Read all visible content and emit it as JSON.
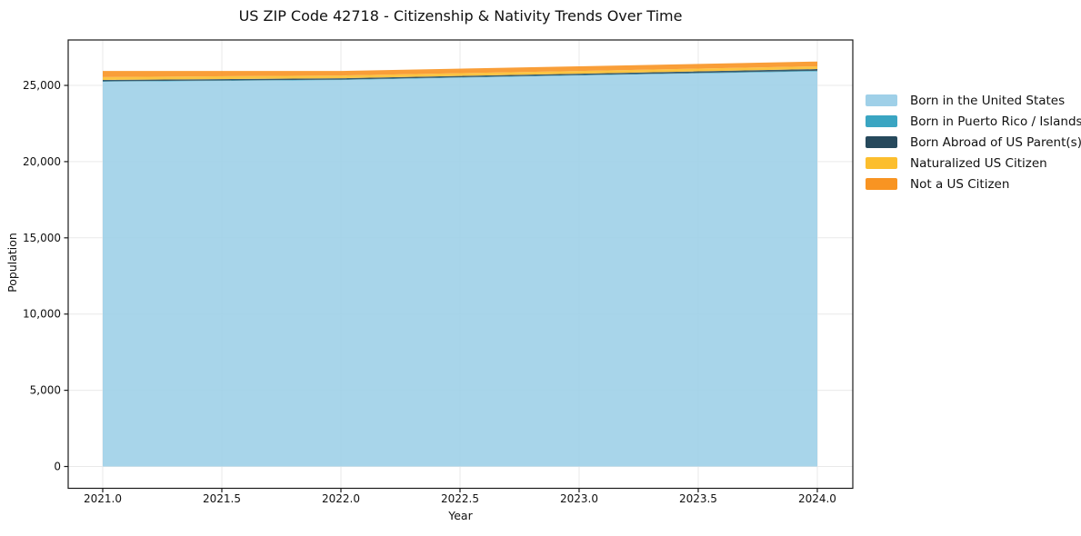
{
  "figure": {
    "title": "US ZIP Code 42718 - Citizenship & Nativity Trends Over Time",
    "background_color": "#ffffff",
    "spine_color": "#1a1a1a",
    "grid_color": "#e9e9e9",
    "text_color": "#111111"
  },
  "chart_data": {
    "type": "area",
    "stacked": true,
    "title": "US ZIP Code 42718 - Citizenship & Nativity Trends Over Time",
    "xlabel": "Year",
    "ylabel": "Population",
    "x": [
      2021,
      2022,
      2023,
      2024
    ],
    "series": [
      {
        "name": "Born in the United States",
        "color": "#9fd0e8",
        "values": [
          25240,
          25350,
          25650,
          25920
        ]
      },
      {
        "name": "Born in Puerto Rico / Islands",
        "color": "#3aa5c2",
        "values": [
          30,
          30,
          30,
          40
        ]
      },
      {
        "name": "Born Abroad of US Parent(s)",
        "color": "#26495c",
        "values": [
          90,
          90,
          90,
          110
        ]
      },
      {
        "name": "Naturalized US Citizen",
        "color": "#fcbe2d",
        "values": [
          180,
          180,
          180,
          180
        ]
      },
      {
        "name": "Not a US Citizen",
        "color": "#f89422",
        "values": [
          410,
          300,
          300,
          320
        ]
      }
    ],
    "totals": [
      25950,
      25950,
      26250,
      26570
    ],
    "xlim": [
      2020.855,
      2024.149
    ],
    "ylim": [
      -1430,
      27980
    ],
    "x_ticks": {
      "values": [
        2021,
        2021.5,
        2022,
        2022.5,
        2023,
        2023.5,
        2024
      ],
      "labels": [
        "2021.0",
        "2021.5",
        "2022.0",
        "2022.5",
        "2023.0",
        "2023.5",
        "2024.0"
      ]
    },
    "y_ticks": {
      "values": [
        0,
        5000,
        10000,
        15000,
        20000,
        25000
      ],
      "labels": [
        "0",
        "5,000",
        "10,000",
        "15,000",
        "20,000",
        "25,000"
      ]
    },
    "grid": true,
    "legend_position": "right-outside"
  }
}
